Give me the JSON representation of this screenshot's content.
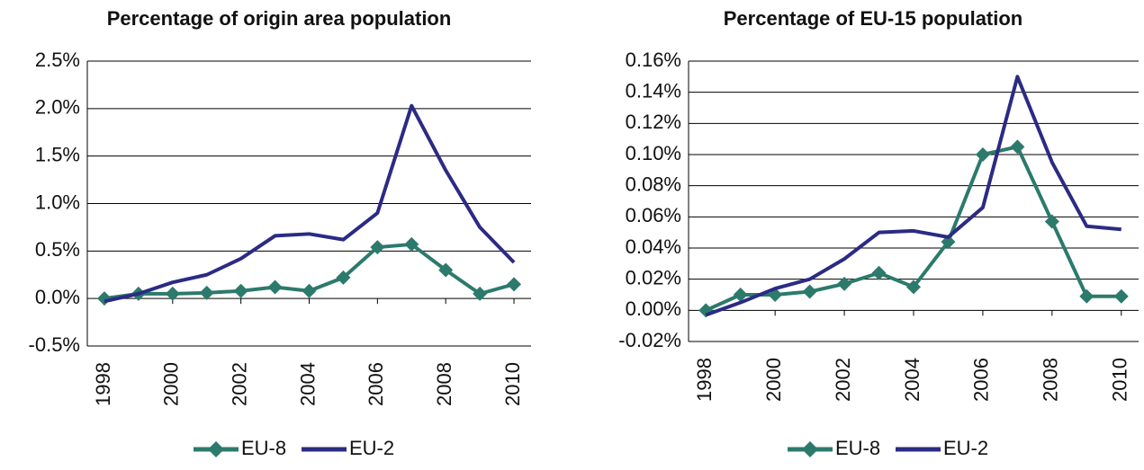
{
  "chart_data": [
    {
      "type": "line",
      "title": "Percentage of origin area population",
      "x": [
        1998,
        1999,
        2000,
        2001,
        2002,
        2003,
        2004,
        2005,
        2006,
        2007,
        2008,
        2009,
        2010
      ],
      "series": [
        {
          "name": "EU-8",
          "color": "#2c7a6c",
          "marker": "diamond",
          "values": [
            0.0,
            0.05,
            0.05,
            0.06,
            0.08,
            0.12,
            0.08,
            0.22,
            0.54,
            0.57,
            0.3,
            0.05,
            0.15
          ]
        },
        {
          "name": "EU-2",
          "color": "#2b2b85",
          "values": [
            -0.03,
            0.05,
            0.17,
            0.25,
            0.42,
            0.66,
            0.68,
            0.62,
            0.9,
            2.03,
            1.35,
            0.75,
            0.38
          ]
        }
      ],
      "xlim": [
        1997.5,
        2010.5
      ],
      "xticks": [
        1998,
        2000,
        2002,
        2004,
        2006,
        2008,
        2010
      ],
      "ylim": [
        -0.5,
        2.5
      ],
      "yticks": [
        {
          "value": -0.5,
          "label": "-0.5%"
        },
        {
          "value": 0,
          "label": "0.0%"
        },
        {
          "value": 0.5,
          "label": "0.5%"
        },
        {
          "value": 1.0,
          "label": "1.0%"
        },
        {
          "value": 1.5,
          "label": "1.5%"
        },
        {
          "value": 2.0,
          "label": "2.0%"
        },
        {
          "value": 2.5,
          "label": "2.5%"
        }
      ],
      "grid": true,
      "legend": "bottom"
    },
    {
      "type": "line",
      "title": "Percentage of EU-15 population",
      "x": [
        1998,
        1999,
        2000,
        2001,
        2002,
        2003,
        2004,
        2005,
        2006,
        2007,
        2008,
        2009,
        2010
      ],
      "series": [
        {
          "name": "EU-8",
          "color": "#2c7a6c",
          "marker": "diamond",
          "values": [
            0.0,
            0.01,
            0.01,
            0.012,
            0.017,
            0.024,
            0.015,
            0.044,
            0.1,
            0.105,
            0.057,
            0.009,
            0.009
          ]
        },
        {
          "name": "EU-2",
          "color": "#2b2b85",
          "values": [
            -0.003,
            0.005,
            0.014,
            0.02,
            0.033,
            0.05,
            0.051,
            0.047,
            0.066,
            0.15,
            0.095,
            0.054,
            0.052
          ]
        }
      ],
      "xlim": [
        1997.5,
        2010.5
      ],
      "xticks": [
        1998,
        2000,
        2002,
        2004,
        2006,
        2008,
        2010
      ],
      "ylim": [
        -0.02,
        0.16
      ],
      "yticks": [
        {
          "value": -0.02,
          "label": "-0.02%"
        },
        {
          "value": 0,
          "label": "0.00%"
        },
        {
          "value": 0.02,
          "label": "0.02%"
        },
        {
          "value": 0.04,
          "label": "0.04%"
        },
        {
          "value": 0.06,
          "label": "0.06%"
        },
        {
          "value": 0.08,
          "label": "0.08%"
        },
        {
          "value": 0.1,
          "label": "0.10%"
        },
        {
          "value": 0.12,
          "label": "0.12%"
        },
        {
          "value": 0.14,
          "label": "0.14%"
        },
        {
          "value": 0.16,
          "label": "0.16%"
        }
      ],
      "grid": true,
      "legend": "bottom"
    }
  ]
}
